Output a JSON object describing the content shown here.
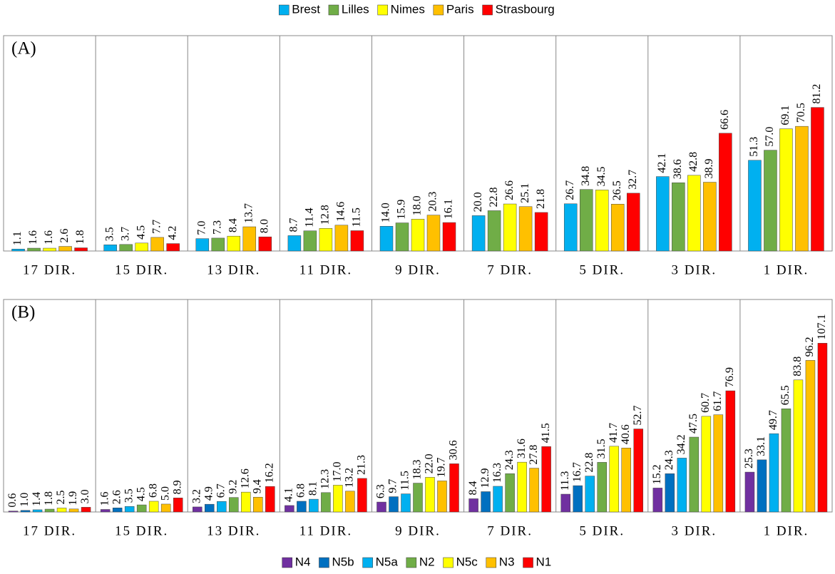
{
  "chart_data": [
    {
      "type": "bar",
      "title": "(A)",
      "legend": "top",
      "categories": [
        "17 DIR.",
        "15 DIR.",
        "13 DIR.",
        "11 DIR.",
        "9 DIR.",
        "7 DIR.",
        "5 DIR.",
        "3 DIR.",
        "1 DIR."
      ],
      "series": [
        {
          "name": "Brest",
          "color": "#00b0f0",
          "values": [
            1.1,
            3.5,
            7.0,
            8.7,
            14.0,
            20.0,
            26.7,
            42.1,
            51.3
          ],
          "value_labels": [
            "1.1",
            "3.5",
            "7.0",
            "8.7",
            "14.0",
            "20.0",
            "26.7",
            "42.1",
            "51.3"
          ]
        },
        {
          "name": "Lilles",
          "color": "#70ad47",
          "values": [
            1.6,
            3.7,
            7.3,
            11.4,
            15.9,
            22.8,
            34.8,
            38.6,
            57.0
          ],
          "value_labels": [
            "1.6",
            "3.7",
            "7.3",
            "11.4",
            "15.9",
            "22.8",
            "34.8",
            "38.6",
            "57.0"
          ]
        },
        {
          "name": "Nimes",
          "color": "#ffff00",
          "values": [
            1.6,
            4.5,
            8.4,
            12.8,
            18.0,
            26.6,
            34.5,
            42.8,
            69.1
          ],
          "value_labels": [
            "1.6",
            "4.5",
            "8.4",
            "12.8",
            "18.0",
            "26.6",
            "34.5",
            "42.8",
            "69.1"
          ]
        },
        {
          "name": "Paris",
          "color": "#ffc000",
          "values": [
            2.6,
            7.7,
            13.7,
            14.6,
            20.3,
            25.1,
            26.5,
            38.9,
            70.5
          ],
          "value_labels": [
            "2.6",
            "7.7",
            "13.7",
            "14.6",
            "20.3",
            "25.1",
            "26.5",
            "38.9",
            "70.5"
          ]
        },
        {
          "name": "Strasbourg",
          "color": "#ff0000",
          "values": [
            1.8,
            4.2,
            8.0,
            11.5,
            16.1,
            21.8,
            32.7,
            66.6,
            81.2
          ],
          "value_labels": [
            "1.8",
            "4.2",
            "8.0",
            "11.5",
            "16.1",
            "21.8",
            "32.7",
            "66.6",
            "81.2"
          ]
        }
      ]
    },
    {
      "type": "bar",
      "title": "(B)",
      "legend": "bottom",
      "categories": [
        "17 DIR.",
        "15 DIR.",
        "13 DIR.",
        "11 DIR.",
        "9 DIR.",
        "7 DIR.",
        "5 DIR.",
        "3 DIR.",
        "1 DIR."
      ],
      "series": [
        {
          "name": "N4",
          "color": "#7030a0",
          "values": [
            0.6,
            1.6,
            3.2,
            4.1,
            6.3,
            8.4,
            11.3,
            15.2,
            25.3
          ],
          "value_labels": [
            "0.6",
            "1.6",
            "3.2",
            "4.1",
            "6.3",
            "8.4",
            "11.3",
            "15.2",
            "25.3"
          ]
        },
        {
          "name": "N5b",
          "color": "#0070c0",
          "values": [
            1.0,
            2.6,
            4.9,
            6.8,
            9.7,
            12.9,
            16.7,
            24.3,
            33.1
          ],
          "value_labels": [
            "1.0",
            "2.6",
            "4.9",
            "6.8",
            "9.7",
            "12.9",
            "16.7",
            "24.3",
            "33.1"
          ]
        },
        {
          "name": "N5a",
          "color": "#00b0f0",
          "values": [
            1.4,
            3.5,
            6.7,
            8.1,
            11.5,
            16.3,
            22.8,
            34.2,
            49.7
          ],
          "value_labels": [
            "1.4",
            "3.5",
            "6.7",
            "8.1",
            "11.5",
            "16.3",
            "22.8",
            "34.2",
            "49.7"
          ]
        },
        {
          "name": "N2",
          "color": "#70ad47",
          "values": [
            1.8,
            4.5,
            9.2,
            12.3,
            18.3,
            24.3,
            31.5,
            47.5,
            65.5
          ],
          "value_labels": [
            "1.8",
            "4.5",
            "9.2",
            "12.3",
            "18.3",
            "24.3",
            "31.5",
            "47.5",
            "65.5"
          ]
        },
        {
          "name": "N5c",
          "color": "#ffff00",
          "values": [
            2.5,
            6.8,
            12.6,
            17.0,
            22.0,
            31.6,
            41.7,
            60.7,
            83.8
          ],
          "value_labels": [
            "2.5",
            "6.8",
            "12.6",
            "17.0",
            "22.0",
            "31.6",
            "41.7",
            "60.7",
            "83.8"
          ]
        },
        {
          "name": "N3",
          "color": "#ffc000",
          "values": [
            1.9,
            5.0,
            9.4,
            13.2,
            19.7,
            27.8,
            40.6,
            61.7,
            96.2
          ],
          "value_labels": [
            "1.9",
            "5.0",
            "9.4",
            "13.2",
            "19.7",
            "27.8",
            "40.6",
            "61.7",
            "96.2"
          ]
        },
        {
          "name": "N1",
          "color": "#ff0000",
          "values": [
            3.0,
            8.9,
            16.2,
            21.3,
            30.6,
            41.5,
            52.7,
            76.9,
            107.1
          ],
          "value_labels": [
            "3.0",
            "8.9",
            "16.2",
            "21.3",
            "30.6",
            "41.5",
            "52.7",
            "76.9",
            "107.1"
          ]
        }
      ]
    }
  ]
}
